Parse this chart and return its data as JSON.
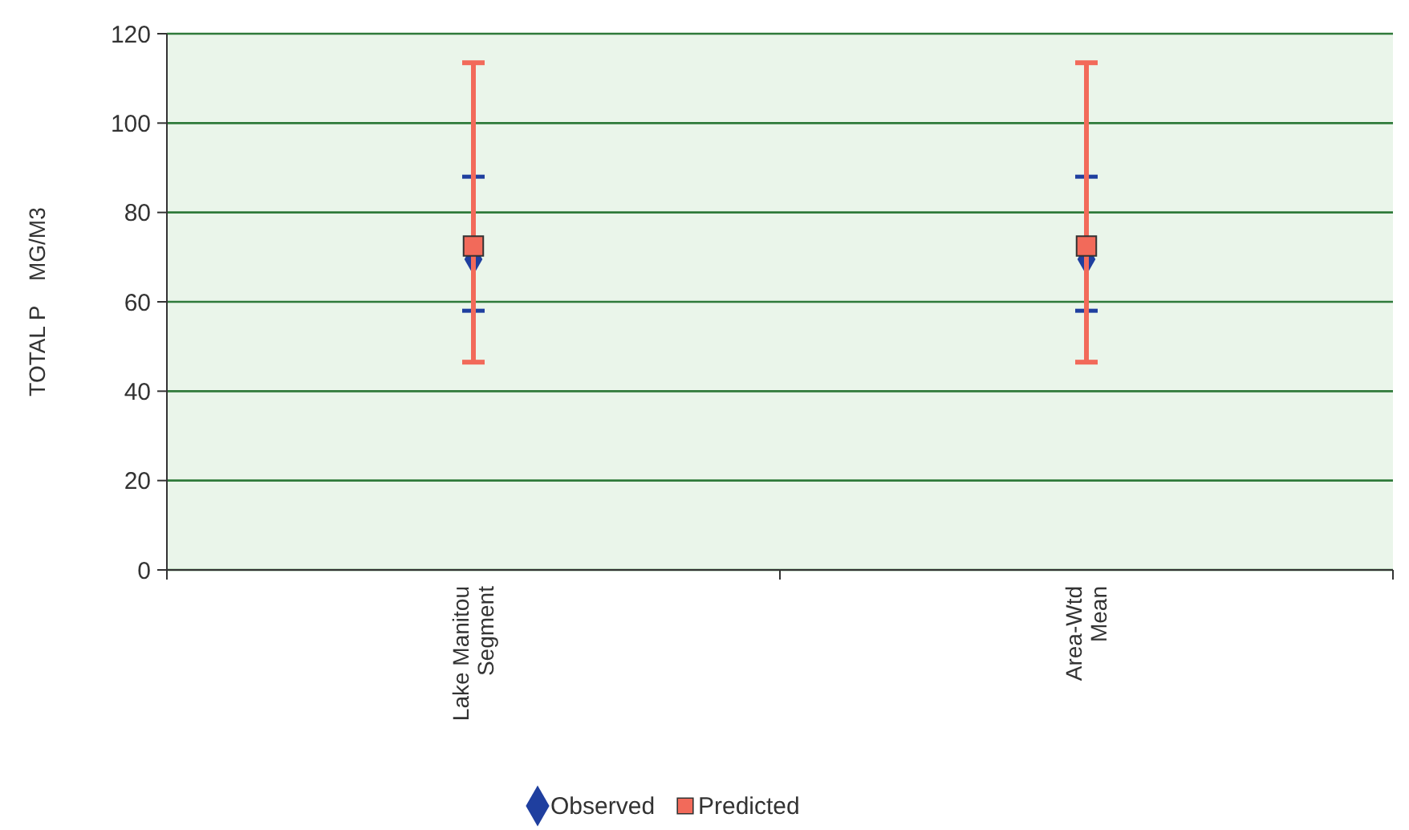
{
  "chart_data": {
    "type": "scatter",
    "ylabel": "TOTAL P    MG/M3",
    "categories": [
      "Lake Manitou Segment",
      "Area-Wtd Mean"
    ],
    "series": [
      {
        "name": "Observed",
        "color": "#1f3f9f",
        "marker": "diamond",
        "values": [
          69.5,
          69.5
        ],
        "errors": [
          [
            58,
            88
          ],
          [
            58,
            88
          ]
        ]
      },
      {
        "name": "Predicted",
        "color": "#f26a5a",
        "marker": "square",
        "values": [
          72.5,
          72.5
        ],
        "errors": [
          [
            46.5,
            113.5
          ],
          [
            46.5,
            113.5
          ]
        ]
      }
    ],
    "ylim": [
      0,
      120
    ],
    "yticks": [
      0,
      20,
      40,
      60,
      80,
      100,
      120
    ],
    "grid": "y",
    "legend": "bottom"
  }
}
